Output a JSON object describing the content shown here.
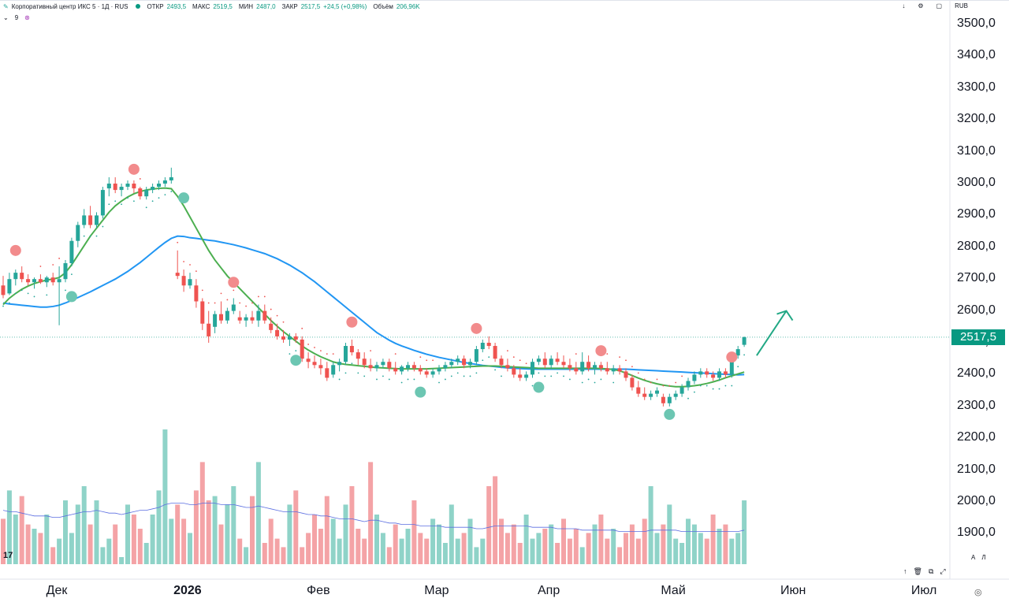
{
  "header": {
    "title": "Корпоративный центр ИКС 5 · 1Д · RUS",
    "open_label": "ОТКР",
    "open": "2493,5",
    "high_label": "МАКС",
    "high": "2519,5",
    "low_label": "МИН",
    "low": "2487,0",
    "close_label": "ЗАКР",
    "close": "2517,5",
    "change": "+24,5 (+0,98%)",
    "volume_label": "Объём",
    "volume": "206,96K",
    "currency": "RUB",
    "indicator_value": "9"
  },
  "chart_data": {
    "type": "candlestick",
    "current_price": "2517,5",
    "y_ticks": [
      "3500,0",
      "3400,0",
      "3300,0",
      "3200,0",
      "3100,0",
      "3000,0",
      "2900,0",
      "2800,0",
      "2700,0",
      "2600,0",
      "2500,0",
      "2400,0",
      "2300,0",
      "2200,0",
      "2100,0",
      "2000,0",
      "1900,0"
    ],
    "y_tick_values": [
      3500,
      3400,
      3300,
      3200,
      3100,
      3000,
      2900,
      2800,
      2700,
      2600,
      2500,
      2400,
      2300,
      2200,
      2100,
      2000,
      1900
    ],
    "ylim": [
      1860,
      3530
    ],
    "x_ticks": [
      {
        "label": "Дек",
        "index": 0,
        "bold": false
      },
      {
        "label": "2026",
        "index": 21,
        "bold": true
      },
      {
        "label": "Фев",
        "index": 42,
        "bold": false
      },
      {
        "label": "Мар",
        "index": 61,
        "bold": false
      },
      {
        "label": "Апр",
        "index": 79,
        "bold": false
      },
      {
        "label": "Май",
        "index": 99,
        "bold": false
      },
      {
        "label": "Июн",
        "index": 118,
        "bold": false
      },
      {
        "label": "Июл",
        "index": 139,
        "bold": false
      }
    ],
    "candles": [
      [
        2680,
        2710,
        2640,
        2650
      ],
      [
        2655,
        2720,
        2650,
        2700
      ],
      [
        2700,
        2730,
        2680,
        2720
      ],
      [
        2720,
        2740,
        2690,
        2700
      ],
      [
        2700,
        2715,
        2680,
        2690
      ],
      [
        2690,
        2705,
        2670,
        2700
      ],
      [
        2700,
        2715,
        2685,
        2690
      ],
      [
        2690,
        2710,
        2675,
        2705
      ],
      [
        2705,
        2720,
        2680,
        2690
      ],
      [
        2690,
        2740,
        2555,
        2700
      ],
      [
        2700,
        2760,
        2690,
        2750
      ],
      [
        2750,
        2830,
        2740,
        2820
      ],
      [
        2820,
        2880,
        2800,
        2870
      ],
      [
        2870,
        2920,
        2860,
        2900
      ],
      [
        2900,
        2930,
        2860,
        2870
      ],
      [
        2870,
        2910,
        2860,
        2900
      ],
      [
        2900,
        2990,
        2890,
        2980
      ],
      [
        2985,
        3020,
        2960,
        3000
      ],
      [
        3000,
        3020,
        2970,
        2980
      ],
      [
        2980,
        3000,
        2960,
        2990
      ],
      [
        2990,
        3010,
        2980,
        3000
      ],
      [
        3000,
        3010,
        2970,
        2985
      ],
      [
        2985,
        2990,
        2950,
        2960
      ],
      [
        2960,
        2990,
        2950,
        2980
      ],
      [
        2980,
        3000,
        2970,
        2990
      ],
      [
        2990,
        3010,
        2980,
        3000
      ],
      [
        3000,
        3020,
        2990,
        3010
      ],
      [
        3010,
        3050,
        3000,
        3020
      ],
      [
        2720,
        2790,
        2700,
        2710
      ],
      [
        2710,
        2730,
        2660,
        2680
      ],
      [
        2680,
        2720,
        2670,
        2700
      ],
      [
        2680,
        2700,
        2610,
        2630
      ],
      [
        2630,
        2640,
        2540,
        2560
      ],
      [
        2560,
        2600,
        2500,
        2520
      ],
      [
        2550,
        2600,
        2530,
        2590
      ],
      [
        2590,
        2630,
        2560,
        2570
      ],
      [
        2570,
        2610,
        2560,
        2600
      ],
      [
        2600,
        2640,
        2590,
        2620
      ],
      [
        2580,
        2600,
        2560,
        2570
      ],
      [
        2570,
        2590,
        2550,
        2580
      ],
      [
        2580,
        2600,
        2560,
        2570
      ],
      [
        2570,
        2620,
        2550,
        2600
      ],
      [
        2600,
        2620,
        2560,
        2570
      ],
      [
        2560,
        2580,
        2530,
        2540
      ],
      [
        2540,
        2560,
        2510,
        2520
      ],
      [
        2520,
        2540,
        2500,
        2510
      ],
      [
        2510,
        2530,
        2490,
        2520
      ],
      [
        2520,
        2530,
        2500,
        2510
      ],
      [
        2510,
        2520,
        2440,
        2450
      ],
      [
        2450,
        2470,
        2420,
        2440
      ],
      [
        2440,
        2460,
        2420,
        2430
      ],
      [
        2430,
        2450,
        2400,
        2420
      ],
      [
        2420,
        2440,
        2380,
        2390
      ],
      [
        2400,
        2440,
        2390,
        2430
      ],
      [
        2430,
        2450,
        2410,
        2440
      ],
      [
        2440,
        2500,
        2430,
        2490
      ],
      [
        2490,
        2510,
        2460,
        2470
      ],
      [
        2470,
        2480,
        2430,
        2450
      ],
      [
        2450,
        2470,
        2420,
        2430
      ],
      [
        2430,
        2450,
        2410,
        2420
      ],
      [
        2420,
        2440,
        2410,
        2430
      ],
      [
        2430,
        2450,
        2420,
        2440
      ],
      [
        2440,
        2450,
        2410,
        2420
      ],
      [
        2420,
        2440,
        2400,
        2410
      ],
      [
        2410,
        2430,
        2400,
        2425
      ],
      [
        2420,
        2440,
        2410,
        2430
      ],
      [
        2430,
        2440,
        2410,
        2420
      ],
      [
        2420,
        2430,
        2400,
        2410
      ],
      [
        2410,
        2420,
        2390,
        2400
      ],
      [
        2400,
        2420,
        2390,
        2410
      ],
      [
        2410,
        2430,
        2400,
        2420
      ],
      [
        2420,
        2440,
        2410,
        2430
      ],
      [
        2430,
        2450,
        2420,
        2440
      ],
      [
        2440,
        2460,
        2430,
        2450
      ],
      [
        2450,
        2460,
        2420,
        2430
      ],
      [
        2430,
        2450,
        2420,
        2440
      ],
      [
        2440,
        2490,
        2430,
        2480
      ],
      [
        2480,
        2510,
        2470,
        2500
      ],
      [
        2500,
        2520,
        2480,
        2490
      ],
      [
        2490,
        2500,
        2440,
        2450
      ],
      [
        2450,
        2460,
        2420,
        2430
      ],
      [
        2430,
        2450,
        2410,
        2420
      ],
      [
        2420,
        2430,
        2390,
        2400
      ],
      [
        2400,
        2420,
        2380,
        2390
      ],
      [
        2390,
        2410,
        2380,
        2400
      ],
      [
        2400,
        2450,
        2390,
        2440
      ],
      [
        2440,
        2460,
        2430,
        2450
      ],
      [
        2450,
        2470,
        2420,
        2430
      ],
      [
        2430,
        2460,
        2420,
        2450
      ],
      [
        2450,
        2470,
        2430,
        2440
      ],
      [
        2440,
        2460,
        2420,
        2430
      ],
      [
        2430,
        2450,
        2410,
        2420
      ],
      [
        2420,
        2440,
        2400,
        2410
      ],
      [
        2410,
        2470,
        2400,
        2440
      ],
      [
        2440,
        2460,
        2410,
        2420
      ],
      [
        2420,
        2440,
        2400,
        2430
      ],
      [
        2430,
        2440,
        2410,
        2420
      ],
      [
        2420,
        2440,
        2400,
        2410
      ],
      [
        2410,
        2430,
        2400,
        2420
      ],
      [
        2420,
        2430,
        2400,
        2410
      ],
      [
        2410,
        2420,
        2380,
        2390
      ],
      [
        2390,
        2400,
        2350,
        2360
      ],
      [
        2360,
        2380,
        2330,
        2340
      ],
      [
        2340,
        2360,
        2320,
        2330
      ],
      [
        2330,
        2350,
        2320,
        2340
      ],
      [
        2340,
        2360,
        2330,
        2350
      ],
      [
        2330,
        2340,
        2300,
        2310
      ],
      [
        2310,
        2340,
        2300,
        2330
      ],
      [
        2330,
        2350,
        2320,
        2340
      ],
      [
        2340,
        2370,
        2330,
        2360
      ],
      [
        2360,
        2390,
        2350,
        2380
      ],
      [
        2380,
        2410,
        2370,
        2400
      ],
      [
        2400,
        2420,
        2390,
        2410
      ],
      [
        2410,
        2420,
        2390,
        2400
      ],
      [
        2400,
        2410,
        2380,
        2390
      ],
      [
        2390,
        2420,
        2380,
        2410
      ],
      [
        2410,
        2420,
        2390,
        2400
      ],
      [
        2400,
        2470,
        2390,
        2460
      ],
      [
        2460,
        2490,
        2450,
        2480
      ],
      [
        2493.5,
        2519.5,
        2487,
        2517.5
      ]
    ],
    "ma_fast": [
      2620,
      2640,
      2655,
      2668,
      2678,
      2686,
      2692,
      2697,
      2700,
      2705,
      2720,
      2745,
      2775,
      2805,
      2835,
      2860,
      2885,
      2910,
      2930,
      2945,
      2958,
      2968,
      2975,
      2980,
      2983,
      2985,
      2986,
      2984,
      2960,
      2930,
      2895,
      2860,
      2825,
      2790,
      2760,
      2735,
      2710,
      2690,
      2670,
      2650,
      2630,
      2610,
      2590,
      2570,
      2552,
      2535,
      2520,
      2505,
      2490,
      2477,
      2466,
      2456,
      2448,
      2440,
      2435,
      2432,
      2430,
      2428,
      2426,
      2424,
      2422,
      2421,
      2420,
      2419,
      2418,
      2418,
      2418,
      2418,
      2418,
      2419,
      2420,
      2421,
      2422,
      2423,
      2424,
      2425,
      2426,
      2427,
      2427,
      2427,
      2426,
      2425,
      2424,
      2423,
      2422,
      2421,
      2420,
      2420,
      2420,
      2420,
      2420,
      2420,
      2420,
      2420,
      2420,
      2420,
      2419,
      2418,
      2416,
      2412,
      2405,
      2397,
      2389,
      2382,
      2376,
      2371,
      2367,
      2364,
      2362,
      2362,
      2363,
      2365,
      2368,
      2372,
      2377,
      2383,
      2390,
      2396,
      2402,
      2408
    ],
    "ma_slow": [
      2625,
      2622,
      2620,
      2618,
      2616,
      2614,
      2612,
      2612,
      2614,
      2618,
      2625,
      2633,
      2642,
      2651,
      2660,
      2670,
      2680,
      2690,
      2700,
      2712,
      2724,
      2738,
      2752,
      2768,
      2784,
      2800,
      2815,
      2828,
      2835,
      2834,
      2830,
      2828,
      2825,
      2822,
      2820,
      2816,
      2812,
      2808,
      2803,
      2798,
      2792,
      2786,
      2780,
      2772,
      2764,
      2754,
      2744,
      2732,
      2720,
      2706,
      2692,
      2676,
      2660,
      2644,
      2628,
      2612,
      2596,
      2580,
      2564,
      2548,
      2532,
      2520,
      2508,
      2498,
      2490,
      2483,
      2476,
      2470,
      2464,
      2459,
      2454,
      2450,
      2446,
      2442,
      2438,
      2435,
      2432,
      2429,
      2427,
      2425,
      2423,
      2421,
      2420,
      2419,
      2418,
      2417,
      2417,
      2417,
      2417,
      2417,
      2417,
      2417,
      2417,
      2417,
      2417,
      2417,
      2417,
      2417,
      2417,
      2417,
      2417,
      2416,
      2415,
      2414,
      2413,
      2412,
      2411,
      2410,
      2409,
      2408,
      2407,
      2406,
      2405,
      2404,
      2403,
      2402,
      2401,
      2400,
      2399,
      2400
    ],
    "volume": [
      0.32,
      0.52,
      0.35,
      0.48,
      0.28,
      0.25,
      0.22,
      0.35,
      0.12,
      0.18,
      0.45,
      0.22,
      0.42,
      0.55,
      0.28,
      0.45,
      0.12,
      0.18,
      0.28,
      0.05,
      0.42,
      0.35,
      0.25,
      0.15,
      0.35,
      0.52,
      0.95,
      0.32,
      0.42,
      0.32,
      0.22,
      0.52,
      0.72,
      0.45,
      0.48,
      0.28,
      0.42,
      0.55,
      0.18,
      0.12,
      0.48,
      0.72,
      0.15,
      0.32,
      0.18,
      0.12,
      0.42,
      0.52,
      0.12,
      0.22,
      0.35,
      0.25,
      0.48,
      0.32,
      0.18,
      0.42,
      0.55,
      0.25,
      0.18,
      0.72,
      0.35,
      0.22,
      0.12,
      0.28,
      0.18,
      0.25,
      0.45,
      0.22,
      0.18,
      0.32,
      0.28,
      0.15,
      0.42,
      0.18,
      0.22,
      0.32,
      0.12,
      0.18,
      0.55,
      0.62,
      0.32,
      0.22,
      0.28,
      0.15,
      0.35,
      0.18,
      0.22,
      0.25,
      0.28,
      0.15,
      0.32,
      0.18,
      0.25,
      0.12,
      0.22,
      0.28,
      0.35,
      0.18,
      0.25,
      0.12,
      0.22,
      0.28,
      0.18,
      0.32,
      0.55,
      0.22,
      0.28,
      0.42,
      0.18,
      0.15,
      0.32,
      0.28,
      0.22,
      0.18,
      0.35,
      0.25,
      0.28,
      0.18,
      0.22,
      0.45
    ],
    "volume_ma": [
      0.38,
      0.37,
      0.37,
      0.36,
      0.35,
      0.34,
      0.34,
      0.34,
      0.33,
      0.33,
      0.34,
      0.35,
      0.36,
      0.37,
      0.37,
      0.38,
      0.37,
      0.36,
      0.36,
      0.35,
      0.36,
      0.37,
      0.38,
      0.38,
      0.39,
      0.4,
      0.42,
      0.43,
      0.43,
      0.43,
      0.42,
      0.42,
      0.43,
      0.43,
      0.43,
      0.42,
      0.42,
      0.42,
      0.41,
      0.4,
      0.4,
      0.41,
      0.4,
      0.39,
      0.38,
      0.37,
      0.37,
      0.37,
      0.36,
      0.35,
      0.35,
      0.34,
      0.34,
      0.33,
      0.32,
      0.32,
      0.32,
      0.31,
      0.3,
      0.31,
      0.31,
      0.3,
      0.29,
      0.29,
      0.28,
      0.28,
      0.28,
      0.27,
      0.27,
      0.27,
      0.27,
      0.26,
      0.26,
      0.26,
      0.26,
      0.26,
      0.25,
      0.25,
      0.26,
      0.27,
      0.27,
      0.27,
      0.27,
      0.27,
      0.27,
      0.26,
      0.26,
      0.26,
      0.26,
      0.25,
      0.25,
      0.25,
      0.25,
      0.24,
      0.24,
      0.24,
      0.24,
      0.24,
      0.24,
      0.23,
      0.23,
      0.23,
      0.23,
      0.23,
      0.24,
      0.24,
      0.24,
      0.24,
      0.24,
      0.23,
      0.23,
      0.23,
      0.23,
      0.23,
      0.23,
      0.23,
      0.23,
      0.23,
      0.23,
      0.24
    ],
    "sell_markers": [
      {
        "i": 2,
        "price": 2790
      },
      {
        "i": 21,
        "price": 3045
      },
      {
        "i": 37,
        "price": 2690
      },
      {
        "i": 56,
        "price": 2565
      },
      {
        "i": 76,
        "price": 2545
      },
      {
        "i": 96,
        "price": 2475
      },
      {
        "i": 117,
        "price": 2455
      }
    ],
    "buy_markers": [
      {
        "i": 11,
        "price": 2645
      },
      {
        "i": 29,
        "price": 2955
      },
      {
        "i": 47,
        "price": 2445
      },
      {
        "i": 67,
        "price": 2345
      },
      {
        "i": 86,
        "price": 2360
      },
      {
        "i": 107,
        "price": 2275
      }
    ],
    "forecast_arrow": {
      "from_i": 121,
      "from_price": 2460,
      "to_i": 125,
      "to_price": 2600
    },
    "colors": {
      "up": "#26a69a",
      "down": "#ef5350",
      "ma_fast": "#4caf50",
      "ma_slow": "#2196f3",
      "vol_up": "#8fd3c8",
      "vol_down": "#f4a3a6",
      "vol_ma": "#5b6ee1",
      "sell_marker": "#f28b8c",
      "buy_marker": "#6cc6b2",
      "arrow": "#22a885"
    }
  },
  "toolbar": {
    "logo": "17"
  }
}
